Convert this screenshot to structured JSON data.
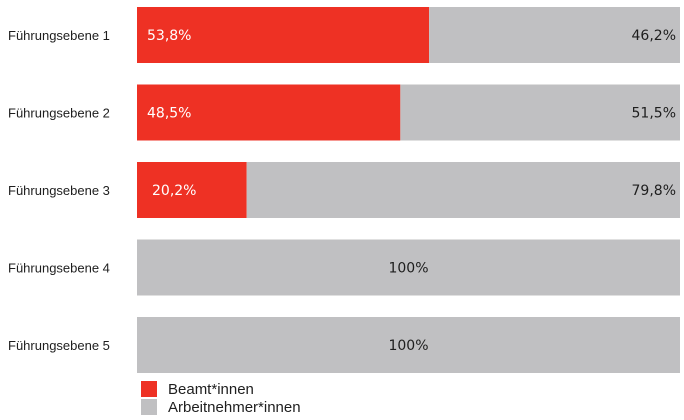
{
  "chart_data": {
    "type": "bar",
    "orientation": "horizontal",
    "stacked": true,
    "percent": true,
    "categories": [
      "Führungsebene 1",
      "Führungsebene 2",
      "Führungsebene 3",
      "Führungsebene 4",
      "Führungsebene 5"
    ],
    "series": [
      {
        "name": "Beamt*innen",
        "color": "#ee3124",
        "values": [
          53.8,
          48.5,
          20.2,
          0,
          0
        ],
        "labels": [
          "53,8%",
          "48,5%",
          "20,2%",
          "",
          ""
        ]
      },
      {
        "name": "Arbeitnehmer*innen",
        "color": "#c0c0c2",
        "values": [
          46.2,
          51.5,
          79.8,
          100,
          100
        ],
        "labels": [
          "46,2%",
          "51,5%",
          "79,8%",
          "100%",
          "100%"
        ]
      }
    ],
    "xlim": [
      0,
      100
    ],
    "grid": false,
    "legend": "bottom-left"
  }
}
